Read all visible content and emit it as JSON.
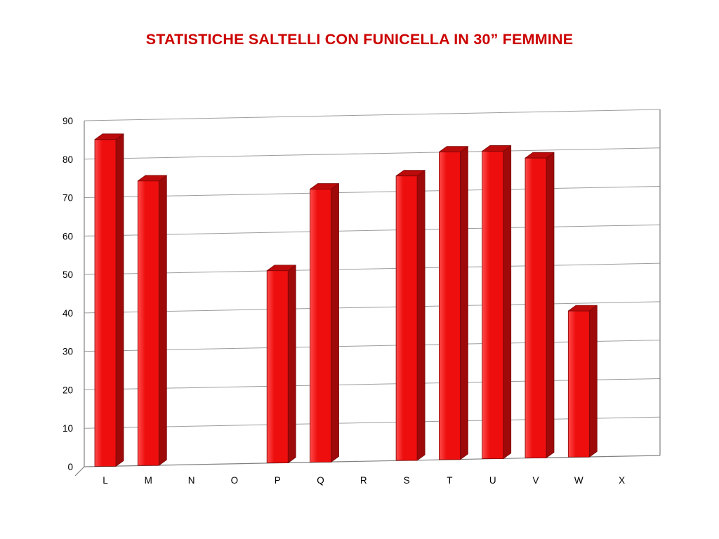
{
  "slide": {
    "background": "#ffffff"
  },
  "chart_data": {
    "type": "bar",
    "style": "3d-column",
    "title": "STATISTICHE SALTELLI CON FUNICELLA IN 30” FEMMINE",
    "categories": [
      "L",
      "M",
      "N",
      "O",
      "P",
      "Q",
      "R",
      "S",
      "T",
      "U",
      "V",
      "W",
      "X"
    ],
    "values": [
      85,
      74,
      0,
      0,
      50,
      71,
      0,
      74,
      80,
      80,
      78,
      38,
      0
    ],
    "xlabel": "",
    "ylabel": "",
    "ylim": [
      0,
      90
    ],
    "ytick_step": 10,
    "ytick_labels": [
      "0",
      "10",
      "20",
      "30",
      "40",
      "50",
      "60",
      "70",
      "80",
      "90"
    ],
    "grid": true,
    "legend": "none",
    "colors": {
      "title": "#CC0000",
      "bar_front": "#EE0E0E",
      "bar_front_light": "#FF4C4C",
      "bar_top": "#BC0B0B",
      "bar_side": "#9E0909",
      "bar_outline": "#7A0606",
      "gridline": "#9D9D9D",
      "axis": "#808080",
      "label_text": "#000000"
    }
  }
}
